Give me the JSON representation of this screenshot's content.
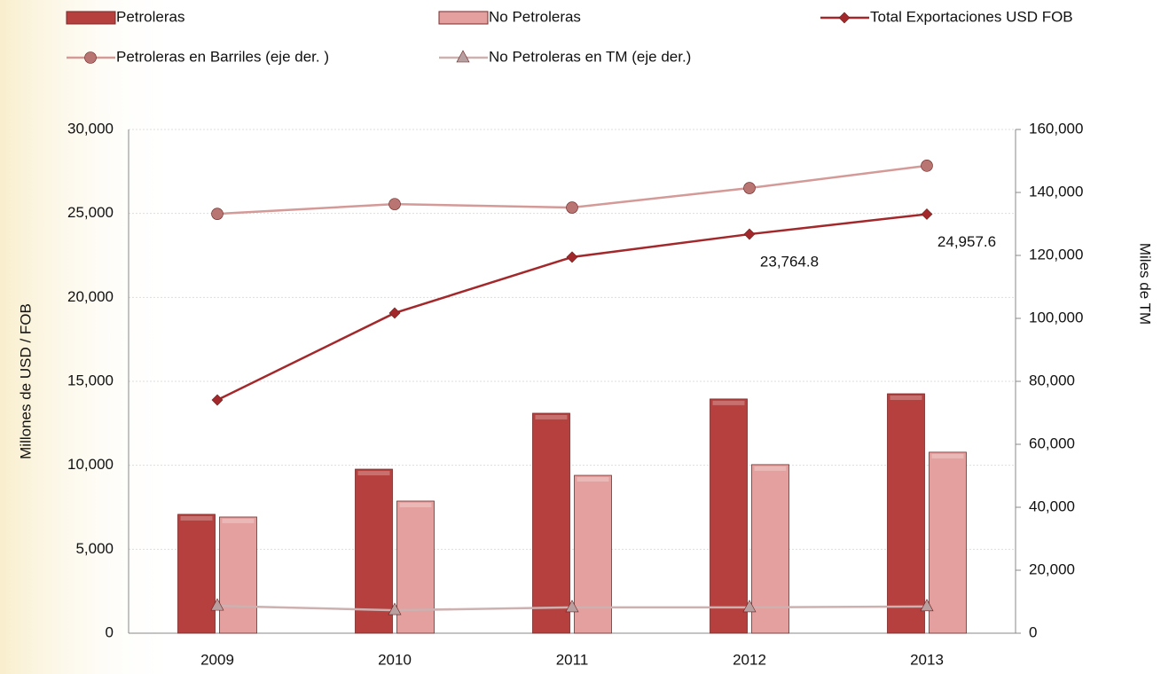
{
  "chart_data": {
    "type": "bar",
    "categories": [
      "2009",
      "2010",
      "2011",
      "2012",
      "2013"
    ],
    "y_label": "Millones de USD / FOB",
    "y2_label": "Miles  de TM",
    "ylim": [
      0,
      30000
    ],
    "yticks": [
      0,
      {
        "value": 5000,
        "label": "5,000"
      },
      {
        "value": 10000,
        "label": "10,000"
      },
      {
        "value": 15000,
        "label": "15,000"
      },
      {
        "value": 20000,
        "label": "20,000"
      },
      {
        "value": 25000,
        "label": "25,000"
      },
      {
        "value": 30000,
        "label": "30,000"
      }
    ],
    "y2lim": [
      0,
      160000
    ],
    "y2ticks": [
      0,
      {
        "value": 20000,
        "label": "20,000"
      },
      {
        "value": 40000,
        "label": "40,000"
      },
      {
        "value": 60000,
        "label": "60,000"
      },
      {
        "value": 80000,
        "label": "80,000"
      },
      {
        "value": 100000,
        "label": "100,000"
      },
      {
        "value": 120000,
        "label": "120,000"
      },
      {
        "value": 140000,
        "label": "140,000"
      },
      {
        "value": 160000,
        "label": "160,000"
      }
    ],
    "grid": true,
    "series": [
      {
        "name": "Petroleras",
        "type": "bar",
        "color": "#b5403e",
        "values": [
          7080,
          9770,
          13100,
          13950,
          14260
        ]
      },
      {
        "name": "No Petroleras",
        "type": "bar",
        "color": "#e3a09e",
        "values": [
          6920,
          7870,
          9400,
          10040,
          10780
        ]
      },
      {
        "name": "Total Exportaciones USD FOB",
        "type": "line",
        "marker": "diamond",
        "color": "#a3282b",
        "values": [
          13890,
          19070,
          22400,
          23764.8,
          24957.6
        ],
        "value_labels": [
          null,
          null,
          null,
          "23,764.8",
          "24,957.6"
        ]
      },
      {
        "name": "Petroleras en Barriles (eje der. )",
        "type": "line",
        "marker": "circle",
        "axis": "y2",
        "color": "#d49a98",
        "values": [
          133200,
          136300,
          135200,
          141400,
          148500
        ]
      },
      {
        "name": "No Petroleras en TM (eje der.)",
        "type": "line",
        "marker": "triangle",
        "axis": "y2",
        "color": "#cdb0b0",
        "values": [
          8700,
          7300,
          8200,
          8200,
          8500
        ]
      }
    ]
  }
}
